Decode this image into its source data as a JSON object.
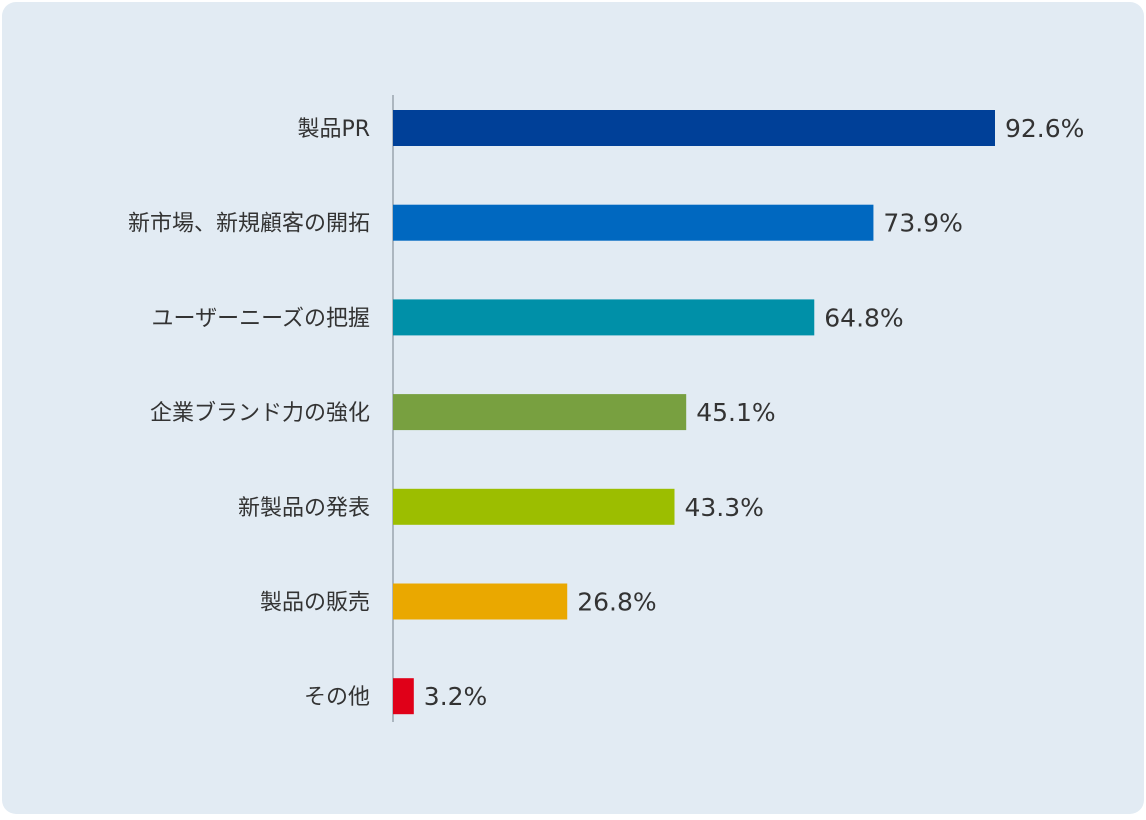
{
  "chart_data": {
    "type": "bar",
    "orientation": "horizontal",
    "categories": [
      "製品PR",
      "新市場、新規顧客の開拓",
      "ユーザーニーズの把握",
      "企業ブランド力の強化",
      "新製品の発表",
      "製品の販売",
      "その他"
    ],
    "values": [
      92.6,
      73.9,
      64.8,
      45.1,
      43.3,
      26.8,
      3.2
    ],
    "value_labels": [
      "92.6%",
      "73.9%",
      "64.8%",
      "45.1%",
      "43.3%",
      "26.8%",
      "3.2%"
    ],
    "colors": [
      "#004098",
      "#0068c0",
      "#0090a8",
      "#78a040",
      "#9cbe00",
      "#eaa800",
      "#e00018"
    ]
  }
}
